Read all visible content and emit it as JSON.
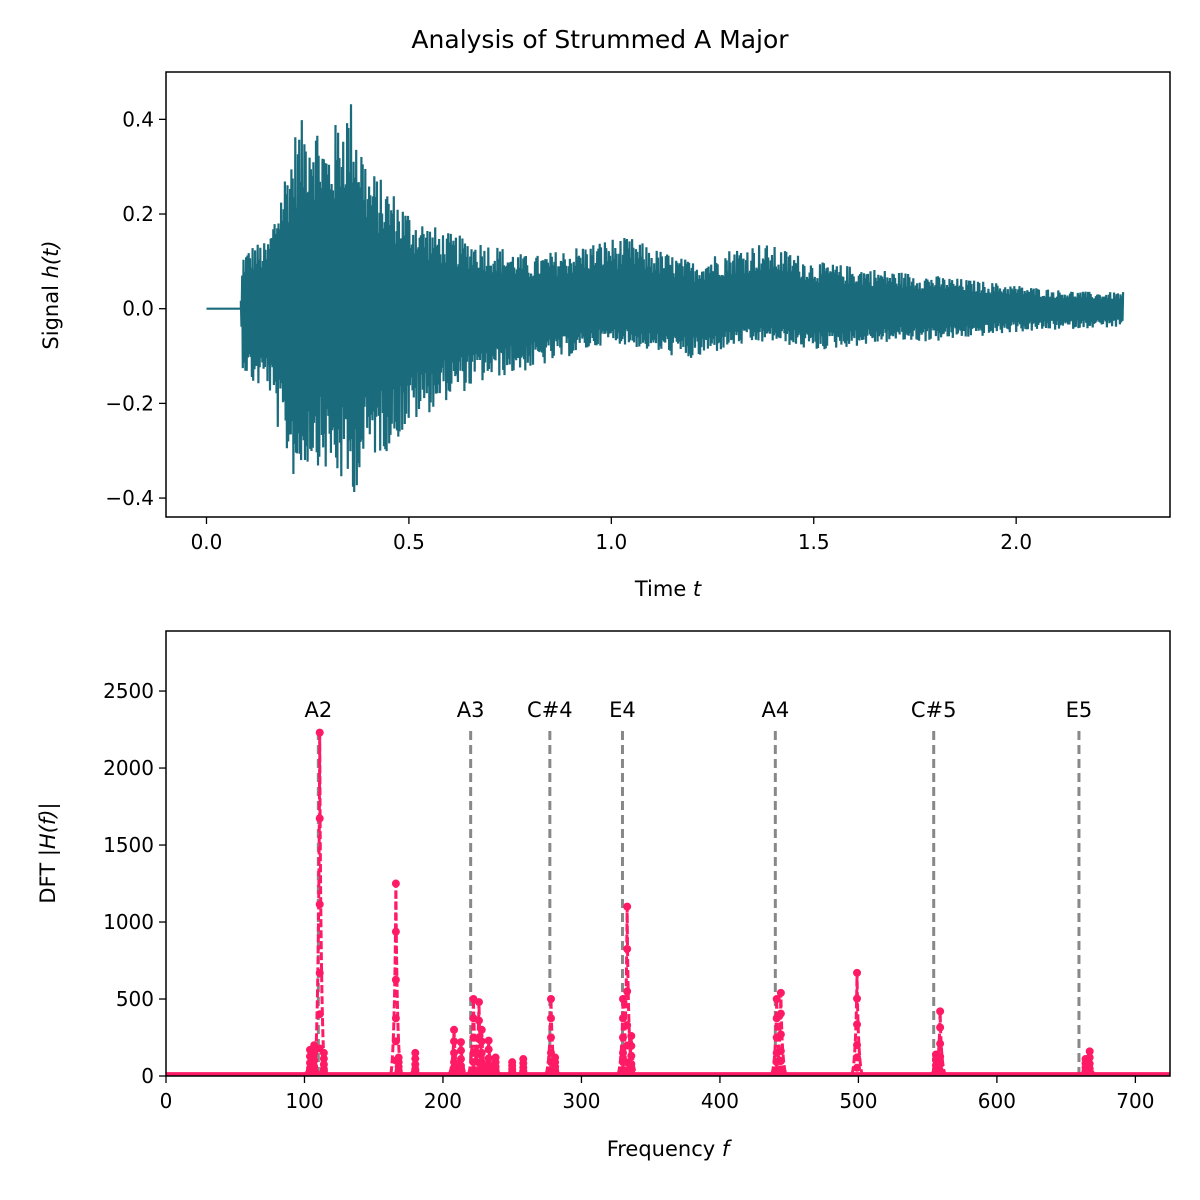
{
  "figure": {
    "title": "Analysis of Strummed A Major"
  },
  "chart_data": [
    {
      "type": "line",
      "panel": "top",
      "xlabel_prefix": "Time ",
      "xlabel_var": "t",
      "ylabel_prefix": "Signal ",
      "ylabel_var": "h(t)",
      "xlim": [
        -0.1,
        2.38
      ],
      "ylim": [
        -0.44,
        0.5
      ],
      "xticks": [
        0.0,
        0.5,
        1.0,
        1.5,
        2.0
      ],
      "xtick_labels": [
        "0.0",
        "0.5",
        "1.0",
        "1.5",
        "2.0"
      ],
      "yticks": [
        -0.4,
        -0.2,
        0.0,
        0.2,
        0.4
      ],
      "ytick_labels": [
        "−0.4",
        "−0.2",
        "0.0",
        "0.2",
        "0.4"
      ],
      "color": "#1a6b7c",
      "signal": {
        "t_start": 0.0,
        "t_onset": 0.085,
        "t_end": 2.265,
        "upper_envelope": [
          [
            0.085,
            0.02
          ],
          [
            0.09,
            0.12
          ],
          [
            0.12,
            0.14
          ],
          [
            0.15,
            0.14
          ],
          [
            0.18,
            0.25
          ],
          [
            0.22,
            0.38
          ],
          [
            0.26,
            0.43
          ],
          [
            0.3,
            0.35
          ],
          [
            0.33,
            0.42
          ],
          [
            0.36,
            0.45
          ],
          [
            0.4,
            0.3
          ],
          [
            0.45,
            0.26
          ],
          [
            0.5,
            0.21
          ],
          [
            0.55,
            0.18
          ],
          [
            0.6,
            0.16
          ],
          [
            0.7,
            0.14
          ],
          [
            0.8,
            0.11
          ],
          [
            0.9,
            0.13
          ],
          [
            1.0,
            0.15
          ],
          [
            1.05,
            0.15
          ],
          [
            1.1,
            0.13
          ],
          [
            1.2,
            0.1
          ],
          [
            1.3,
            0.13
          ],
          [
            1.37,
            0.14
          ],
          [
            1.45,
            0.12
          ],
          [
            1.5,
            0.1
          ],
          [
            1.6,
            0.09
          ],
          [
            1.7,
            0.08
          ],
          [
            1.8,
            0.07
          ],
          [
            1.9,
            0.06
          ],
          [
            2.0,
            0.05
          ],
          [
            2.1,
            0.04
          ],
          [
            2.2,
            0.035
          ],
          [
            2.265,
            0.035
          ]
        ],
        "lower_envelope": [
          [
            0.085,
            -0.02
          ],
          [
            0.09,
            -0.13
          ],
          [
            0.12,
            -0.17
          ],
          [
            0.15,
            -0.16
          ],
          [
            0.18,
            -0.27
          ],
          [
            0.22,
            -0.37
          ],
          [
            0.26,
            -0.32
          ],
          [
            0.3,
            -0.35
          ],
          [
            0.33,
            -0.37
          ],
          [
            0.36,
            -0.4
          ],
          [
            0.4,
            -0.32
          ],
          [
            0.45,
            -0.3
          ],
          [
            0.5,
            -0.25
          ],
          [
            0.55,
            -0.22
          ],
          [
            0.6,
            -0.19
          ],
          [
            0.7,
            -0.15
          ],
          [
            0.8,
            -0.13
          ],
          [
            0.9,
            -0.1
          ],
          [
            1.0,
            -0.07
          ],
          [
            1.1,
            -0.09
          ],
          [
            1.2,
            -0.11
          ],
          [
            1.3,
            -0.08
          ],
          [
            1.4,
            -0.07
          ],
          [
            1.5,
            -0.09
          ],
          [
            1.6,
            -0.08
          ],
          [
            1.7,
            -0.07
          ],
          [
            1.8,
            -0.07
          ],
          [
            1.9,
            -0.06
          ],
          [
            2.0,
            -0.05
          ],
          [
            2.1,
            -0.045
          ],
          [
            2.2,
            -0.04
          ],
          [
            2.265,
            -0.04
          ]
        ]
      }
    },
    {
      "type": "line",
      "panel": "bottom",
      "xlabel_prefix": "Frequency ",
      "xlabel_var": "f",
      "ylabel_prefix": "DFT ",
      "ylabel_var": "|H(f)|",
      "xlim": [
        0,
        725
      ],
      "ylim": [
        0,
        2890
      ],
      "xticks": [
        0,
        100,
        200,
        300,
        400,
        500,
        600,
        700
      ],
      "xtick_labels": [
        "0",
        "100",
        "200",
        "300",
        "400",
        "500",
        "600",
        "700"
      ],
      "yticks": [
        0,
        500,
        1000,
        1500,
        2000,
        2500
      ],
      "ytick_labels": [
        "0",
        "500",
        "1000",
        "1500",
        "2000",
        "2500"
      ],
      "color": "#ff1a66",
      "guide_color": "#888888",
      "guide_top": 2250,
      "note_labels": [
        {
          "name": "A2",
          "freq": 110.0
        },
        {
          "name": "A3",
          "freq": 220.0
        },
        {
          "name": "C#4",
          "freq": 277.18
        },
        {
          "name": "E4",
          "freq": 329.63
        },
        {
          "name": "A4",
          "freq": 440.0
        },
        {
          "name": "C#5",
          "freq": 554.37
        },
        {
          "name": "E5",
          "freq": 659.26
        }
      ],
      "label_y": 2330,
      "peaks": [
        {
          "f": 104,
          "a": 170
        },
        {
          "f": 107,
          "a": 200
        },
        {
          "f": 111,
          "a": 2230
        },
        {
          "f": 114,
          "a": 150
        },
        {
          "f": 166,
          "a": 1250
        },
        {
          "f": 168,
          "a": 120
        },
        {
          "f": 180,
          "a": 150
        },
        {
          "f": 208,
          "a": 300
        },
        {
          "f": 213,
          "a": 220
        },
        {
          "f": 222,
          "a": 500
        },
        {
          "f": 226,
          "a": 480
        },
        {
          "f": 228,
          "a": 300
        },
        {
          "f": 233,
          "a": 230
        },
        {
          "f": 238,
          "a": 120
        },
        {
          "f": 250,
          "a": 90
        },
        {
          "f": 258,
          "a": 110
        },
        {
          "f": 278,
          "a": 500
        },
        {
          "f": 281,
          "a": 120
        },
        {
          "f": 330,
          "a": 500
        },
        {
          "f": 333,
          "a": 1100
        },
        {
          "f": 336,
          "a": 260
        },
        {
          "f": 441,
          "a": 500
        },
        {
          "f": 444,
          "a": 540
        },
        {
          "f": 499,
          "a": 670
        },
        {
          "f": 556,
          "a": 140
        },
        {
          "f": 559,
          "a": 420
        },
        {
          "f": 664,
          "a": 110
        },
        {
          "f": 667,
          "a": 160
        }
      ]
    }
  ]
}
